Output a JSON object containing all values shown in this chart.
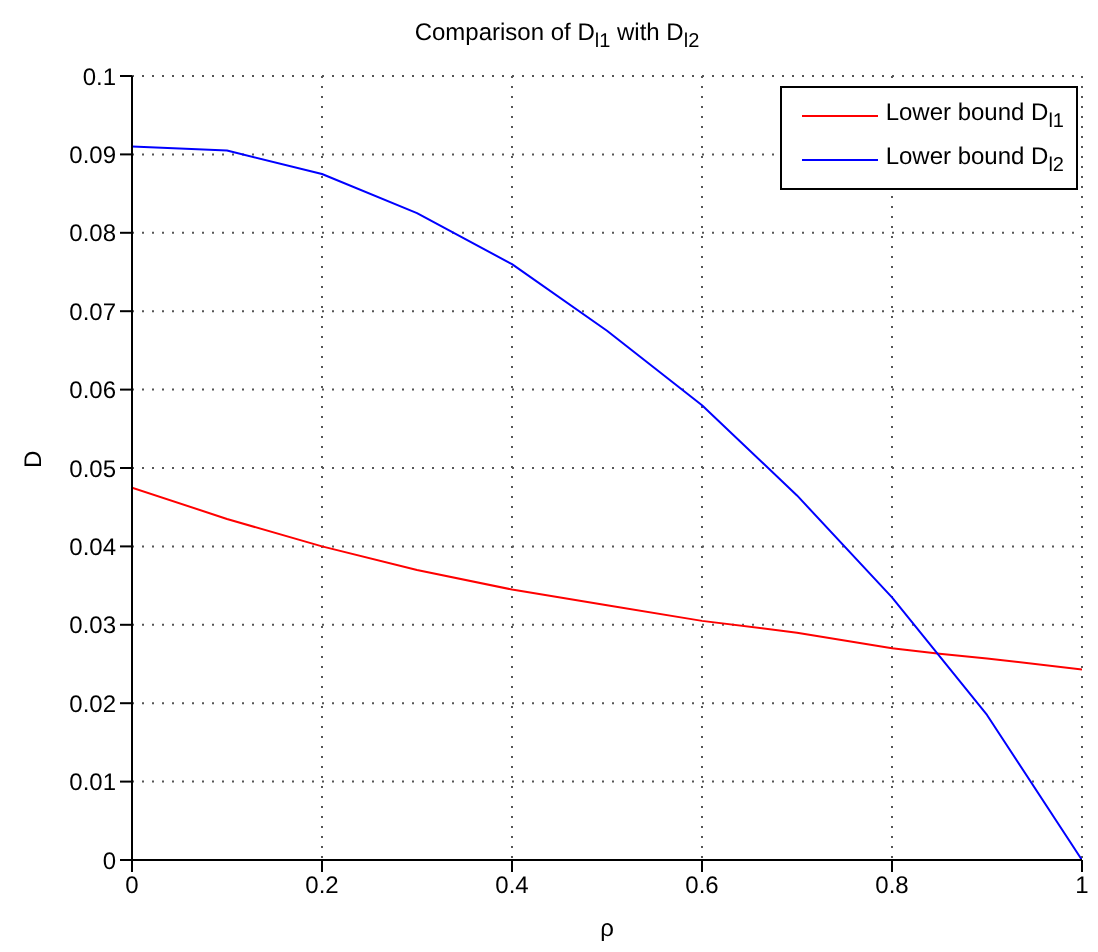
{
  "chart_data": {
    "type": "line",
    "title": "Comparison of D$_{l1}$ with D$_{l2}$",
    "xlabel": "ρ",
    "ylabel": "D",
    "x": [
      0,
      0.1,
      0.2,
      0.3,
      0.4,
      0.5,
      0.6,
      0.7,
      0.8,
      0.85,
      0.9,
      1.0
    ],
    "series": [
      {
        "name": "Lower bound D$_{l1}$",
        "color": "#ff0000",
        "values": [
          0.0475,
          0.0435,
          0.04,
          0.037,
          0.0345,
          0.0325,
          0.0305,
          0.029,
          0.027,
          0.0263,
          0.0257,
          0.0243
        ]
      },
      {
        "name": "Lower bound D$_{l2}$",
        "color": "#0000ff",
        "values": [
          0.091,
          0.0905,
          0.0875,
          0.0825,
          0.076,
          0.0675,
          0.058,
          0.0465,
          0.0335,
          0.026,
          0.0185,
          0.0
        ]
      }
    ],
    "xlim": [
      0,
      1
    ],
    "xticks": [
      0,
      0.2,
      0.4,
      0.6,
      0.8,
      1
    ],
    "ylim": [
      0,
      0.1
    ],
    "yticks": [
      0,
      0.01,
      0.02,
      0.03,
      0.04,
      0.05,
      0.06,
      0.07,
      0.08,
      0.09,
      0.1
    ],
    "grid": true,
    "legend": "top right",
    "marker": "none",
    "line_style": "solid"
  }
}
